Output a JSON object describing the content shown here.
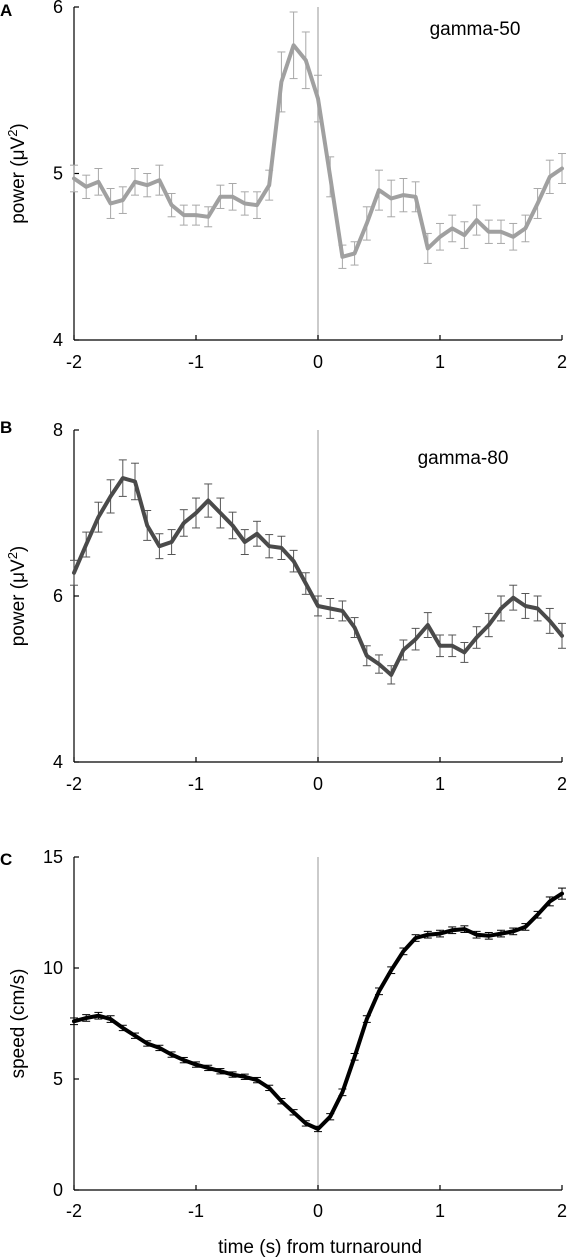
{
  "xlabel": "time (s) from turnaround",
  "chart_data": [
    {
      "type": "line",
      "panel": "A",
      "annotation": "gamma-50",
      "ylabel": "power (μV",
      "ylabel_sup": "2",
      "ylabel_close": ")",
      "xlim": [
        -2,
        2
      ],
      "ylim": [
        4,
        6
      ],
      "xticks": [
        "-2",
        "-1",
        "0",
        "1",
        "2"
      ],
      "yticks": [
        "4",
        "5",
        "6"
      ],
      "color": "#a0a0a0",
      "error_color": "#a8a8a8",
      "vline_x": 0,
      "series": [
        {
          "x": [
            -2.0,
            -1.9,
            -1.8,
            -1.7,
            -1.6,
            -1.5,
            -1.4,
            -1.3,
            -1.2,
            -1.1,
            -1.0,
            -0.9,
            -0.8,
            -0.7,
            -0.6,
            -0.5,
            -0.4,
            -0.3,
            -0.2,
            -0.1,
            0.0,
            0.1,
            0.2,
            0.3,
            0.4,
            0.5,
            0.6,
            0.7,
            0.8,
            0.9,
            1.0,
            1.1,
            1.2,
            1.3,
            1.4,
            1.5,
            1.6,
            1.7,
            1.8,
            1.9,
            2.0
          ],
          "y": [
            4.97,
            4.92,
            4.95,
            4.82,
            4.84,
            4.95,
            4.93,
            4.96,
            4.81,
            4.75,
            4.75,
            4.74,
            4.86,
            4.86,
            4.82,
            4.81,
            4.93,
            5.55,
            5.77,
            5.68,
            5.45,
            4.98,
            4.5,
            4.52,
            4.7,
            4.9,
            4.85,
            4.87,
            4.86,
            4.55,
            4.62,
            4.67,
            4.63,
            4.72,
            4.65,
            4.65,
            4.62,
            4.67,
            4.82,
            4.98,
            5.03
          ],
          "err": [
            0.08,
            0.07,
            0.08,
            0.09,
            0.08,
            0.08,
            0.07,
            0.09,
            0.07,
            0.06,
            0.06,
            0.06,
            0.07,
            0.08,
            0.07,
            0.08,
            0.09,
            0.18,
            0.2,
            0.17,
            0.14,
            0.12,
            0.07,
            0.07,
            0.1,
            0.12,
            0.11,
            0.1,
            0.09,
            0.09,
            0.08,
            0.08,
            0.08,
            0.09,
            0.07,
            0.07,
            0.08,
            0.08,
            0.09,
            0.1,
            0.09
          ]
        }
      ]
    },
    {
      "type": "line",
      "panel": "B",
      "annotation": "gamma-80",
      "ylabel": "power (μV",
      "ylabel_sup": "2",
      "ylabel_close": ")",
      "xlim": [
        -2,
        2
      ],
      "ylim": [
        4,
        8
      ],
      "xticks": [
        "-2",
        "-1",
        "0",
        "1",
        "2"
      ],
      "yticks": [
        "4",
        "6",
        "8"
      ],
      "color": "#4a4a4a",
      "error_color": "#555555",
      "vline_x": 0,
      "series": [
        {
          "x": [
            -2.0,
            -1.9,
            -1.8,
            -1.7,
            -1.6,
            -1.5,
            -1.4,
            -1.3,
            -1.2,
            -1.1,
            -1.0,
            -0.9,
            -0.8,
            -0.7,
            -0.6,
            -0.5,
            -0.4,
            -0.3,
            -0.2,
            -0.1,
            0.0,
            0.1,
            0.2,
            0.3,
            0.4,
            0.5,
            0.6,
            0.7,
            0.8,
            0.9,
            1.0,
            1.1,
            1.2,
            1.3,
            1.4,
            1.5,
            1.6,
            1.7,
            1.8,
            1.9,
            2.0
          ],
          "y": [
            6.28,
            6.62,
            6.95,
            7.2,
            7.42,
            7.38,
            6.85,
            6.6,
            6.65,
            6.88,
            7.0,
            7.15,
            7.0,
            6.85,
            6.65,
            6.75,
            6.6,
            6.58,
            6.42,
            6.15,
            5.88,
            5.85,
            5.82,
            5.62,
            5.28,
            5.18,
            5.05,
            5.35,
            5.48,
            5.65,
            5.4,
            5.4,
            5.32,
            5.5,
            5.65,
            5.85,
            5.98,
            5.88,
            5.85,
            5.7,
            5.52
          ],
          "err": [
            0.15,
            0.15,
            0.18,
            0.2,
            0.22,
            0.22,
            0.18,
            0.15,
            0.15,
            0.16,
            0.18,
            0.2,
            0.18,
            0.16,
            0.15,
            0.15,
            0.14,
            0.14,
            0.13,
            0.13,
            0.12,
            0.12,
            0.12,
            0.12,
            0.12,
            0.11,
            0.11,
            0.12,
            0.13,
            0.15,
            0.13,
            0.13,
            0.12,
            0.13,
            0.14,
            0.15,
            0.15,
            0.15,
            0.15,
            0.15,
            0.15
          ]
        }
      ]
    },
    {
      "type": "line",
      "panel": "C",
      "annotation": "",
      "ylabel": "speed (cm/s)",
      "ylabel_sup": "",
      "ylabel_close": "",
      "xlim": [
        -2,
        2
      ],
      "ylim": [
        0,
        15
      ],
      "xticks": [
        "-2",
        "-1",
        "0",
        "1",
        "2"
      ],
      "yticks": [
        "0",
        "5",
        "10",
        "15"
      ],
      "color": "#000000",
      "error_color": "#000000",
      "vline_x": 0,
      "series": [
        {
          "x": [
            -2.0,
            -1.9,
            -1.8,
            -1.7,
            -1.6,
            -1.5,
            -1.4,
            -1.3,
            -1.2,
            -1.1,
            -1.0,
            -0.9,
            -0.8,
            -0.7,
            -0.6,
            -0.5,
            -0.4,
            -0.3,
            -0.2,
            -0.1,
            0.0,
            0.1,
            0.2,
            0.3,
            0.4,
            0.5,
            0.6,
            0.7,
            0.8,
            0.9,
            1.0,
            1.1,
            1.2,
            1.3,
            1.4,
            1.5,
            1.6,
            1.7,
            1.8,
            1.9,
            2.0
          ],
          "y": [
            7.6,
            7.75,
            7.85,
            7.7,
            7.3,
            6.95,
            6.6,
            6.4,
            6.1,
            5.85,
            5.65,
            5.5,
            5.35,
            5.2,
            5.1,
            4.95,
            4.6,
            4.0,
            3.5,
            3.0,
            2.75,
            3.3,
            4.4,
            6.0,
            7.7,
            8.95,
            9.9,
            10.75,
            11.35,
            11.5,
            11.55,
            11.7,
            11.75,
            11.5,
            11.45,
            11.55,
            11.65,
            11.85,
            12.4,
            13.0,
            13.35
          ],
          "err": [
            0.15,
            0.15,
            0.15,
            0.15,
            0.12,
            0.12,
            0.12,
            0.12,
            0.12,
            0.12,
            0.12,
            0.12,
            0.12,
            0.12,
            0.12,
            0.12,
            0.12,
            0.12,
            0.12,
            0.12,
            0.12,
            0.14,
            0.15,
            0.15,
            0.15,
            0.15,
            0.15,
            0.15,
            0.15,
            0.15,
            0.15,
            0.15,
            0.15,
            0.15,
            0.15,
            0.15,
            0.15,
            0.15,
            0.15,
            0.2,
            0.25
          ]
        }
      ]
    }
  ]
}
